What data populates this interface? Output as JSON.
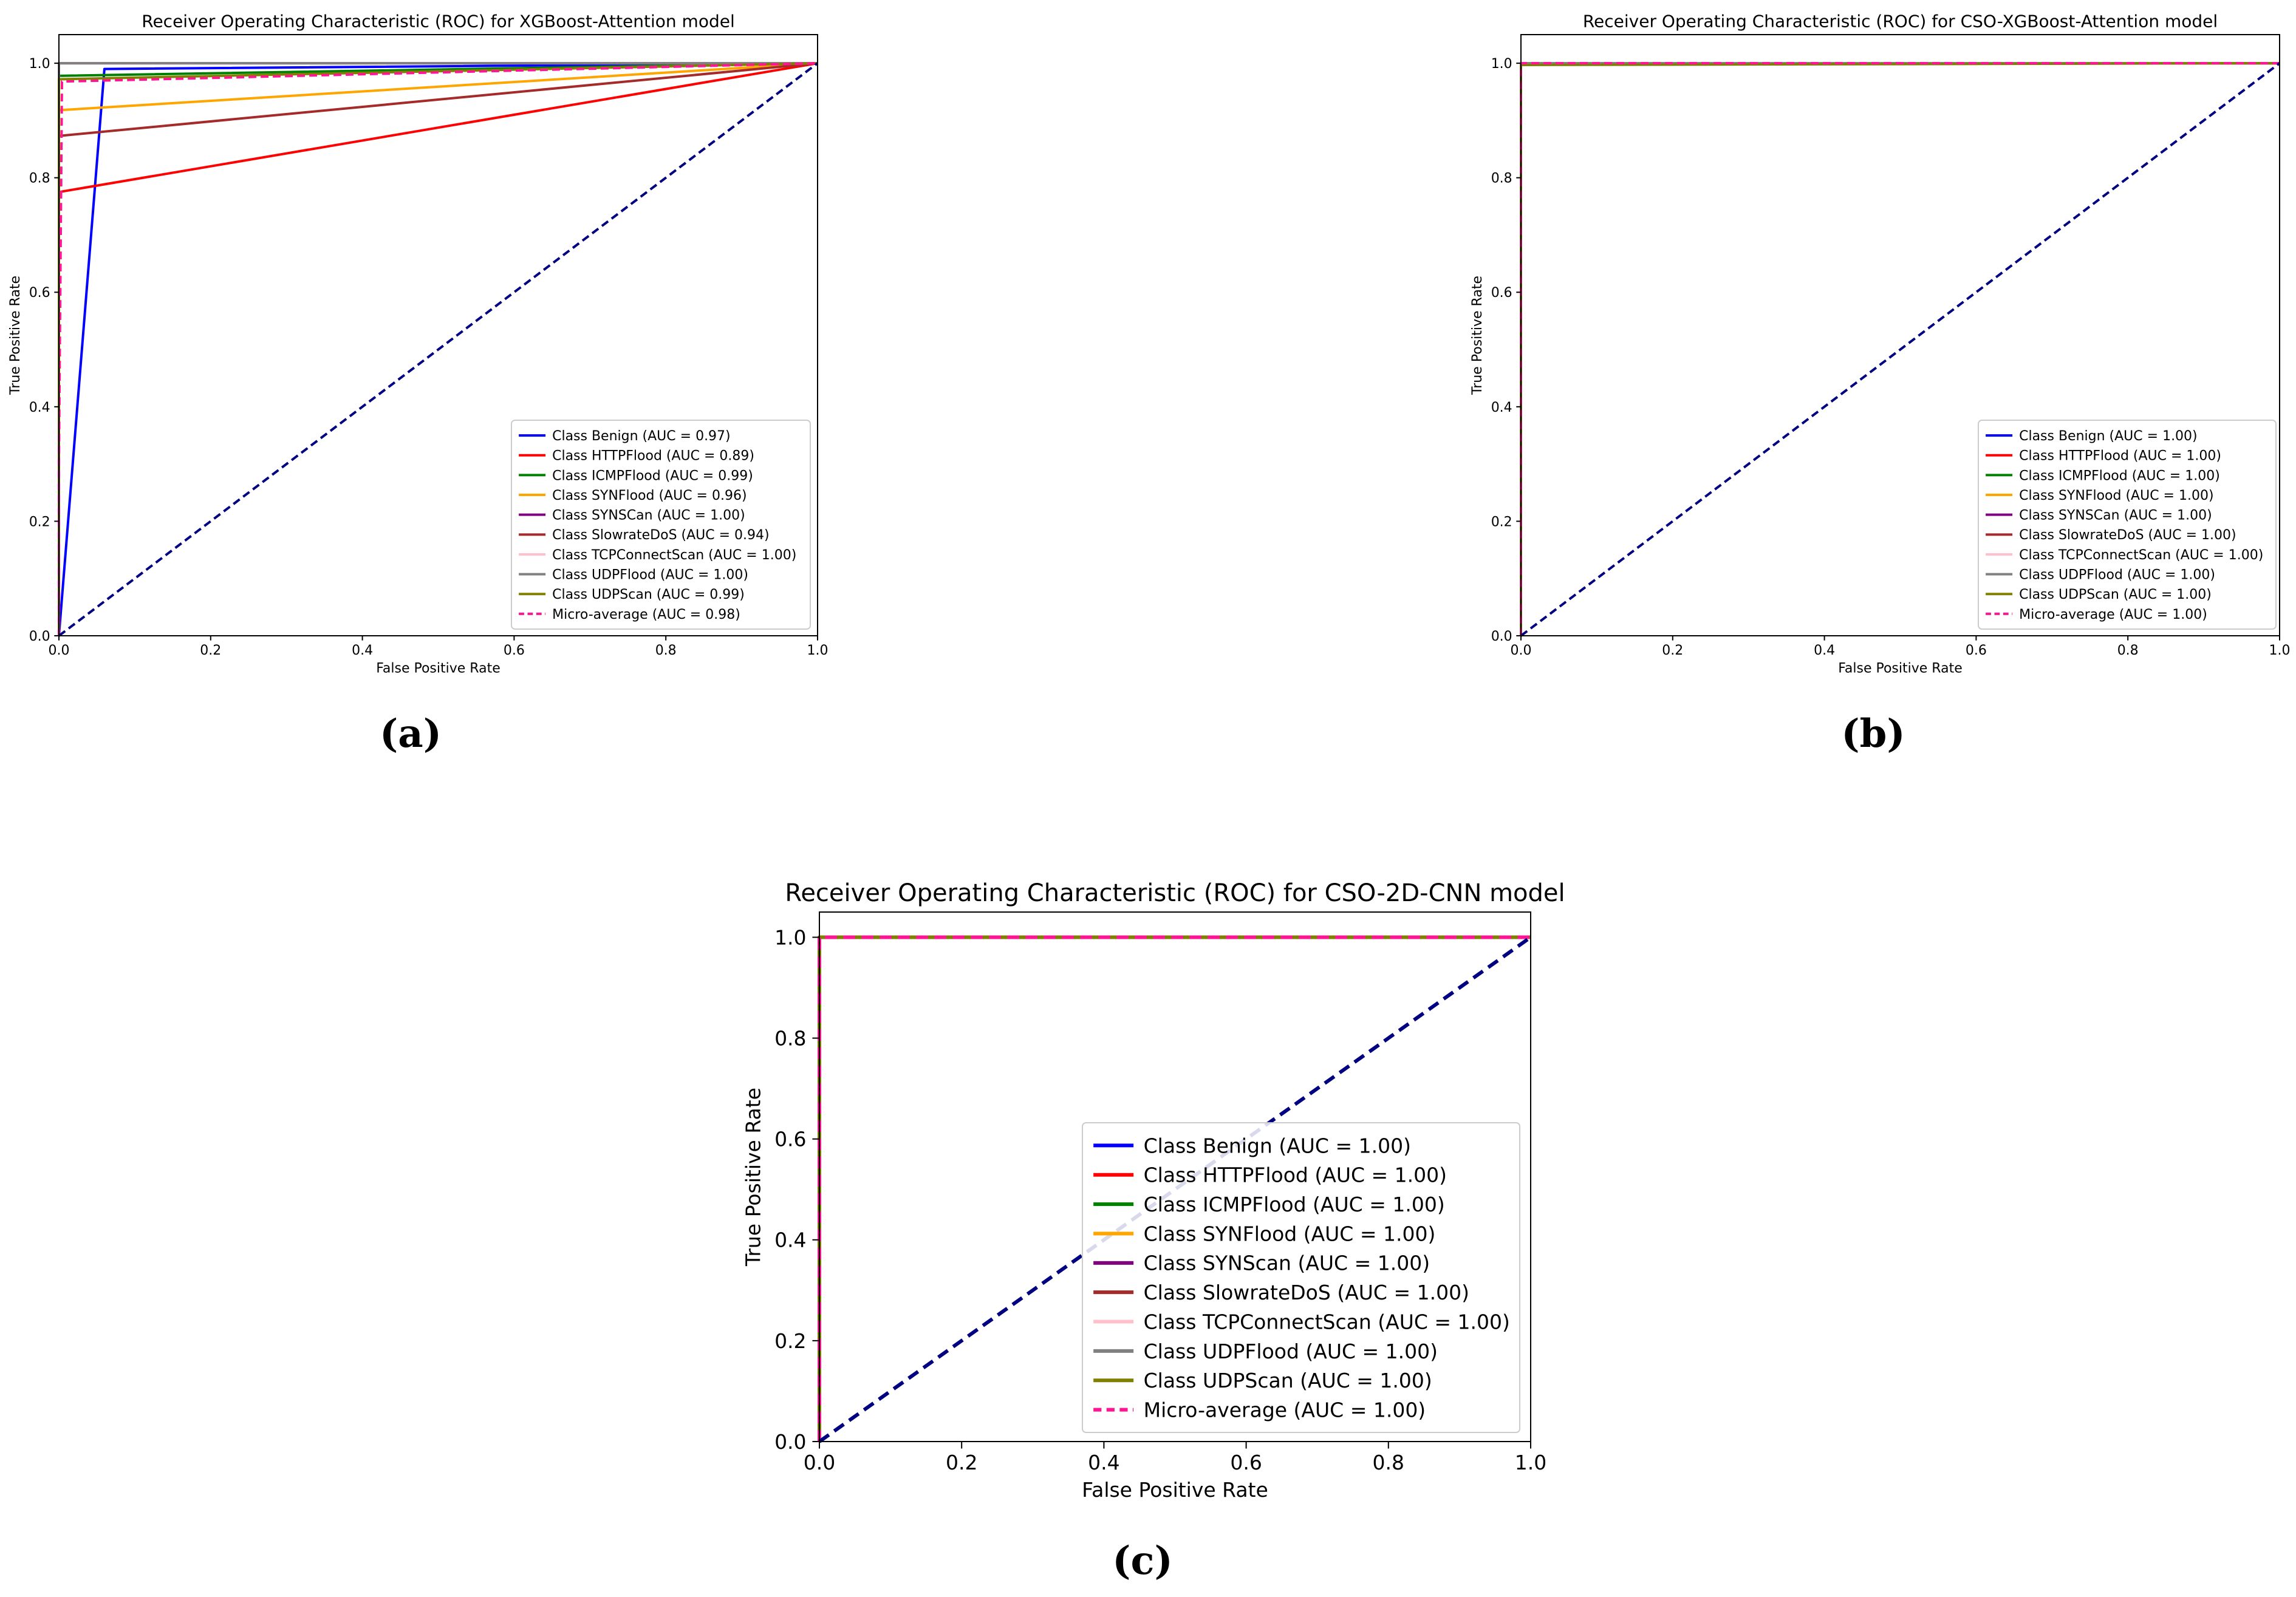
{
  "colors": {
    "Benign": "#0000ff",
    "HTTPFlood": "#ff0000",
    "ICMPFlood": "#008000",
    "SYNFlood": "#ffa500",
    "SYNScan": "#800080",
    "SlowrateDoS": "#a52a2a",
    "TCPConnectScan": "#ffc0cb",
    "UDPFlood": "#808080",
    "UDPScan": "#808000",
    "Micro": "#ff1493",
    "Diagonal": "#000080"
  },
  "chart_data": [
    {
      "type": "line",
      "caption": "(a)",
      "title": "Receiver Operating Characteristic (ROC) for XGBoost-Attention model",
      "xlabel": "False Positive Rate",
      "ylabel": "True Positive Rate",
      "xlim": [
        0,
        1
      ],
      "ylim": [
        0,
        1.05
      ],
      "xticks": [
        "0.0",
        "0.2",
        "0.4",
        "0.6",
        "0.8",
        "1.0"
      ],
      "yticks": [
        "0.0",
        "0.2",
        "0.4",
        "0.6",
        "0.8",
        "1.0"
      ],
      "legend_position": "lower-right",
      "series": [
        {
          "name": "Class Benign (AUC = 0.97)",
          "key": "Benign",
          "x": [
            0,
            0.06,
            1
          ],
          "y": [
            0,
            0.99,
            1
          ]
        },
        {
          "name": "Class HTTPFlood (AUC = 0.89)",
          "key": "HTTPFlood",
          "x": [
            0,
            0,
            1
          ],
          "y": [
            0,
            0.775,
            1
          ]
        },
        {
          "name": "Class ICMPFlood (AUC = 0.99)",
          "key": "ICMPFlood",
          "x": [
            0,
            0,
            1
          ],
          "y": [
            0,
            0.978,
            1
          ]
        },
        {
          "name": "Class SYNFlood (AUC = 0.96)",
          "key": "SYNFlood",
          "x": [
            0,
            0,
            1
          ],
          "y": [
            0,
            0.918,
            1
          ]
        },
        {
          "name": "Class SYNSCan (AUC = 1.00)",
          "key": "SYNScan",
          "x": [
            0,
            0,
            1
          ],
          "y": [
            0,
            1.0,
            1
          ]
        },
        {
          "name": "Class SlowrateDoS (AUC = 0.94)",
          "key": "SlowrateDoS",
          "x": [
            0,
            0,
            1
          ],
          "y": [
            0,
            0.873,
            1
          ]
        },
        {
          "name": "Class TCPConnectScan (AUC = 1.00)",
          "key": "TCPConnectScan",
          "x": [
            0,
            0,
            1
          ],
          "y": [
            0,
            1.0,
            1
          ]
        },
        {
          "name": "Class UDPFlood (AUC = 1.00)",
          "key": "UDPFlood",
          "x": [
            0,
            0,
            1
          ],
          "y": [
            0,
            1.0,
            1
          ]
        },
        {
          "name": "Class UDPScan (AUC = 0.99)",
          "key": "UDPScan",
          "x": [
            0,
            0,
            1
          ],
          "y": [
            0,
            0.972,
            1
          ]
        },
        {
          "name": "Micro-average (AUC = 0.98)",
          "key": "Micro",
          "dashed": true,
          "x": [
            0,
            0,
            0.004,
            1
          ],
          "y": [
            0,
            0.3,
            0.968,
            1
          ]
        }
      ]
    },
    {
      "type": "line",
      "caption": "(b)",
      "title": "Receiver Operating Characteristic (ROC) for CSO-XGBoost-Attention model",
      "xlabel": "False Positive Rate",
      "ylabel": "True Positive Rate",
      "xlim": [
        0,
        1
      ],
      "ylim": [
        0,
        1.05
      ],
      "xticks": [
        "0.0",
        "0.2",
        "0.4",
        "0.6",
        "0.8",
        "1.0"
      ],
      "yticks": [
        "0.0",
        "0.2",
        "0.4",
        "0.6",
        "0.8",
        "1.0"
      ],
      "legend_position": "lower-right",
      "series": [
        {
          "name": "Class Benign (AUC = 1.00)",
          "key": "Benign",
          "x": [
            0,
            0,
            1
          ],
          "y": [
            0,
            1.0,
            1
          ]
        },
        {
          "name": "Class HTTPFlood (AUC = 1.00)",
          "key": "HTTPFlood",
          "x": [
            0,
            0,
            1
          ],
          "y": [
            0,
            1.0,
            1
          ]
        },
        {
          "name": "Class ICMPFlood (AUC = 1.00)",
          "key": "ICMPFlood",
          "x": [
            0,
            0,
            1
          ],
          "y": [
            0,
            1.0,
            1
          ]
        },
        {
          "name": "Class SYNFlood (AUC = 1.00)",
          "key": "SYNFlood",
          "x": [
            0,
            0,
            1
          ],
          "y": [
            0,
            0.998,
            1
          ]
        },
        {
          "name": "Class SYNSCan (AUC = 1.00)",
          "key": "SYNScan",
          "x": [
            0,
            0,
            1
          ],
          "y": [
            0,
            1.0,
            1
          ]
        },
        {
          "name": "Class SlowrateDoS (AUC = 1.00)",
          "key": "SlowrateDoS",
          "x": [
            0,
            0,
            1
          ],
          "y": [
            0,
            1.0,
            1
          ]
        },
        {
          "name": "Class TCPConnectScan (AUC = 1.00)",
          "key": "TCPConnectScan",
          "x": [
            0,
            0,
            1
          ],
          "y": [
            0,
            1.0,
            1
          ]
        },
        {
          "name": "Class UDPFlood (AUC = 1.00)",
          "key": "UDPFlood",
          "x": [
            0,
            0,
            1
          ],
          "y": [
            0,
            1.0,
            1
          ]
        },
        {
          "name": "Class UDPScan (AUC = 1.00)",
          "key": "UDPScan",
          "x": [
            0,
            0,
            1
          ],
          "y": [
            0,
            0.997,
            1
          ]
        },
        {
          "name": "Micro-average (AUC = 1.00)",
          "key": "Micro",
          "dashed": true,
          "x": [
            0,
            0,
            1
          ],
          "y": [
            0,
            1.0,
            1
          ]
        }
      ]
    },
    {
      "type": "line",
      "caption": "(c)",
      "title": "Receiver Operating Characteristic (ROC) for CSO-2D-CNN model",
      "xlabel": "False Positive Rate",
      "ylabel": "True Positive Rate",
      "xlim": [
        0,
        1
      ],
      "ylim": [
        0,
        1.05
      ],
      "xticks": [
        "0.0",
        "0.2",
        "0.4",
        "0.6",
        "0.8",
        "1.0"
      ],
      "yticks": [
        "0.0",
        "0.2",
        "0.4",
        "0.6",
        "0.8",
        "1.0"
      ],
      "legend_position": "lower-right",
      "series": [
        {
          "name": "Class Benign (AUC = 1.00)",
          "key": "Benign",
          "x": [
            0,
            0,
            1
          ],
          "y": [
            0,
            1.0,
            1
          ]
        },
        {
          "name": "Class HTTPFlood (AUC = 1.00)",
          "key": "HTTPFlood",
          "x": [
            0,
            0,
            1
          ],
          "y": [
            0,
            1.0,
            1
          ]
        },
        {
          "name": "Class ICMPFlood (AUC = 1.00)",
          "key": "ICMPFlood",
          "x": [
            0,
            0,
            1
          ],
          "y": [
            0,
            1.0,
            1
          ]
        },
        {
          "name": "Class SYNFlood (AUC = 1.00)",
          "key": "SYNFlood",
          "x": [
            0,
            0,
            1
          ],
          "y": [
            0,
            1.0,
            1
          ]
        },
        {
          "name": "Class SYNScan (AUC = 1.00)",
          "key": "SYNScan",
          "x": [
            0,
            0,
            1
          ],
          "y": [
            0,
            1.0,
            1
          ]
        },
        {
          "name": "Class SlowrateDoS (AUC = 1.00)",
          "key": "SlowrateDoS",
          "x": [
            0,
            0,
            1
          ],
          "y": [
            0,
            1.0,
            1
          ]
        },
        {
          "name": "Class TCPConnectScan (AUC = 1.00)",
          "key": "TCPConnectScan",
          "x": [
            0,
            0,
            1
          ],
          "y": [
            0,
            1.0,
            1
          ]
        },
        {
          "name": "Class UDPFlood (AUC = 1.00)",
          "key": "UDPFlood",
          "x": [
            0,
            0,
            1
          ],
          "y": [
            0,
            1.0,
            1
          ]
        },
        {
          "name": "Class UDPScan (AUC = 1.00)",
          "key": "UDPScan",
          "x": [
            0,
            0,
            1
          ],
          "y": [
            0,
            1.0,
            1
          ]
        },
        {
          "name": "Micro-average (AUC = 1.00)",
          "key": "Micro",
          "dashed": true,
          "x": [
            0,
            0,
            1
          ],
          "y": [
            0,
            1.0,
            1
          ]
        }
      ]
    }
  ]
}
